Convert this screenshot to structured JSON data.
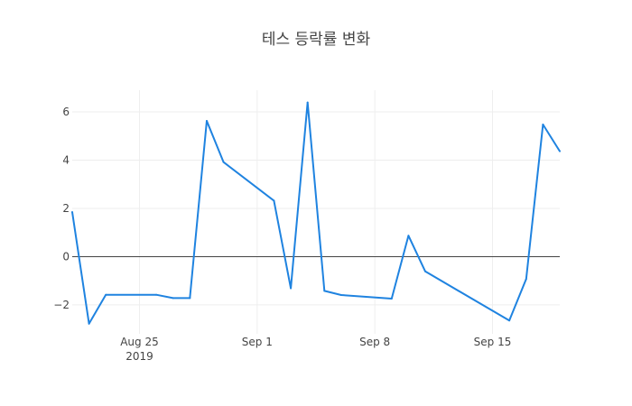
{
  "chart_data": {
    "type": "line",
    "title": "테스 등락률 변화",
    "xlabel": "",
    "ylabel": "",
    "x": [
      "2019-08-21",
      "2019-08-22",
      "2019-08-23",
      "2019-08-26",
      "2019-08-27",
      "2019-08-28",
      "2019-08-29",
      "2019-08-30",
      "2019-09-02",
      "2019-09-03",
      "2019-09-04",
      "2019-09-05",
      "2019-09-06",
      "2019-09-09",
      "2019-09-10",
      "2019-09-11",
      "2019-09-16",
      "2019-09-17",
      "2019-09-18",
      "2019-09-19"
    ],
    "series": [
      {
        "values": [
          1.85,
          -2.78,
          -1.58,
          -1.58,
          -1.72,
          -1.72,
          5.63,
          3.92,
          2.32,
          -1.31,
          6.39,
          -1.42,
          -1.59,
          -1.74,
          0.87,
          -0.61,
          -2.65,
          -0.93,
          5.48,
          4.37
        ],
        "color": "#1f83e0"
      }
    ],
    "ylim": [
      -3.2,
      6.9
    ],
    "xlim": [
      "2019-08-21",
      "2019-09-19"
    ],
    "yticks": [
      -2,
      0,
      2,
      4,
      6
    ],
    "ytick_labels": [
      "−2",
      "0",
      "2",
      "4",
      "6"
    ],
    "xticks": [
      {
        "date": "2019-08-25",
        "label": "Aug 25",
        "sublabel": "2019"
      },
      {
        "date": "2019-09-01",
        "label": "Sep 1",
        "sublabel": ""
      },
      {
        "date": "2019-09-08",
        "label": "Sep 8",
        "sublabel": ""
      },
      {
        "date": "2019-09-15",
        "label": "Sep 15",
        "sublabel": ""
      }
    ],
    "grid": true,
    "zero_line": true,
    "legend": "none"
  }
}
